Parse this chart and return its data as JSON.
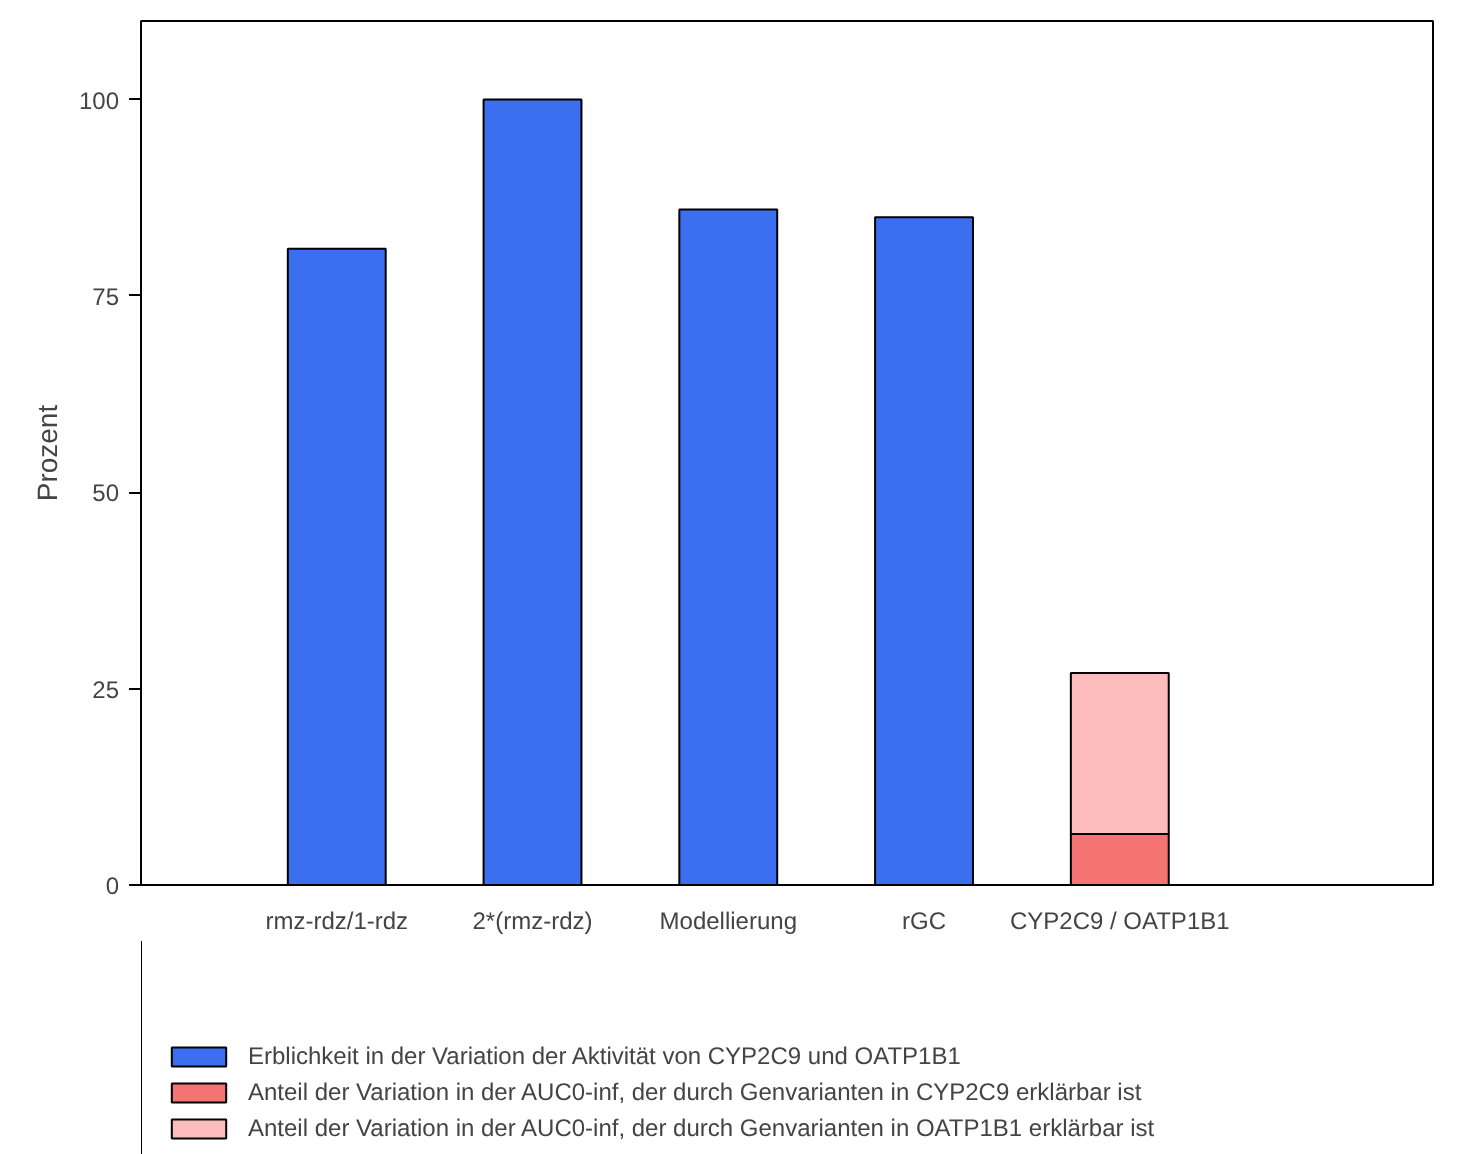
{
  "chart_data": {
    "type": "bar",
    "stacked": true,
    "ylabel": "Prozent",
    "categories": [
      "rmz-rdz/1-rdz",
      "2*(rmz-rdz)",
      "Modellierung",
      "rGC",
      "CYP2C9 / OATP1B1"
    ],
    "series": [
      {
        "name": "Erblichkeit in der Variation der Aktivität von CYP2C9 und OATP1B1",
        "color": "#3c6ff0",
        "values": [
          81,
          100,
          86,
          85,
          null
        ]
      },
      {
        "name": "Anteil der Variation in der AUC0-inf, der durch Genvarianten in CYP2C9 erklärbar ist",
        "color": "#f47474",
        "values": [
          null,
          null,
          null,
          null,
          6.5
        ]
      },
      {
        "name": "Anteil der Variation in der AUC0-inf, der durch Genvarianten in OATP1B1 erklärbar ist",
        "color": "#fcbcbc",
        "values": [
          null,
          null,
          null,
          null,
          20.5
        ]
      }
    ],
    "ylim": [
      0,
      110
    ],
    "yticks": [
      0,
      25,
      50,
      75,
      100
    ],
    "grid": false,
    "legend": "bottom"
  }
}
